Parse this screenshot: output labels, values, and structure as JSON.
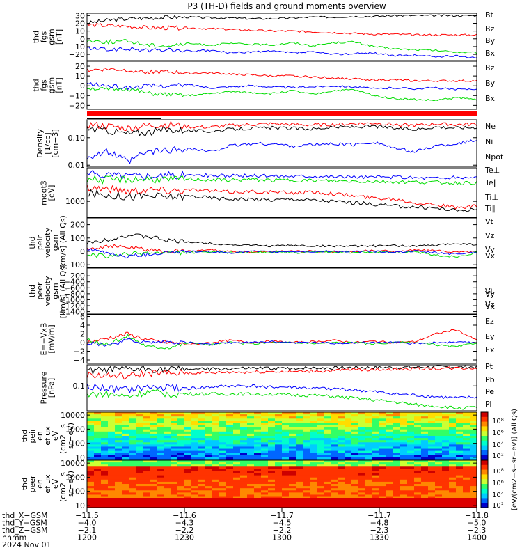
{
  "chart_data": {
    "title": "P3 (TH-D) fields and ground moments overview",
    "panels": [
      {
        "ylabel": [
          "thd",
          "fgs",
          "gsm",
          "[nT]"
        ],
        "ylim": [
          -28,
          33
        ],
        "yticks": [
          "30",
          "20",
          "10",
          "0",
          "−10",
          "−20"
        ],
        "ytick_values": [
          30,
          20,
          10,
          0,
          -10,
          -20
        ],
        "series": [
          {
            "name": "Bt",
            "color": "#000000",
            "values": [
              20,
              24,
              26,
              27,
              28,
              28,
              27,
              27,
              26,
              26,
              27,
              28,
              28,
              29,
              29,
              30,
              30,
              30,
              30,
              30
            ]
          },
          {
            "name": "Bz",
            "color": "#ff0000",
            "values": [
              18,
              17,
              16,
              14,
              14,
              14,
              13,
              12,
              11,
              10,
              10,
              9,
              8,
              7,
              6,
              6,
              5,
              5,
              5,
              5
            ]
          },
          {
            "name": "By",
            "color": "#00dd00",
            "values": [
              -2,
              -4,
              -3,
              -8,
              -9,
              -6,
              -8,
              -6,
              -7,
              -8,
              -5,
              -9,
              -5,
              -4,
              -10,
              -13,
              -14,
              -15,
              -17,
              -18
            ]
          },
          {
            "name": "Bx",
            "color": "#0000ff",
            "values": [
              -12,
              -14,
              -13,
              -15,
              -14,
              -16,
              -15,
              -18,
              -17,
              -16,
              -18,
              -17,
              -20,
              -19,
              -18,
              -22,
              -21,
              -23,
              -22,
              -24
            ]
          }
        ]
      },
      {
        "ylabel": [
          "thd",
          "fgs",
          "gsm",
          "[nT]"
        ],
        "ylim": [
          -24,
          25
        ],
        "yticks": [
          "20",
          "10",
          "0",
          "−10",
          "−20"
        ],
        "ytick_values": [
          20,
          10,
          0,
          -10,
          -20
        ],
        "series": [
          {
            "name": "Bz",
            "color": "#ff0000",
            "values": [
              16,
              17,
              16,
              14,
              14,
              13,
              13,
              12,
              11,
              10,
              10,
              9,
              8,
              7,
              6,
              6,
              5,
              5,
              5,
              5
            ]
          },
          {
            "name": "By",
            "color": "#00dd00",
            "values": [
              -2,
              -4,
              -3,
              -8,
              -9,
              -10,
              -8,
              -6,
              -7,
              -8,
              -5,
              -9,
              -5,
              -4,
              -10,
              -13,
              -14,
              -15,
              -12,
              -14
            ]
          },
          {
            "name": "Bx",
            "color": "#0000ff",
            "values": [
              2,
              0,
              -2,
              0,
              0,
              1,
              -2,
              -1,
              0,
              -1,
              -2,
              -1,
              0,
              -1,
              -3,
              -2,
              -3,
              -2,
              -4,
              -3
            ]
          }
        ]
      },
      {
        "ylabel": [
          "Density",
          "[1/cc]",
          "[cm−3]"
        ],
        "log": true,
        "ylim": [
          0.0085,
          0.45
        ],
        "yticks": [
          "0.10",
          "0.01"
        ],
        "ytick_values": [
          0.1,
          0.01
        ],
        "series": [
          {
            "name": "Ne",
            "color": "#ff0000",
            "values": [
              0.3,
              0.26,
              0.22,
              0.28,
              0.3,
              0.25,
              0.24,
              0.28,
              0.3,
              0.32,
              0.3,
              0.29,
              0.3,
              0.32,
              0.34,
              0.3,
              0.28,
              0.32,
              0.3,
              0.31
            ]
          },
          {
            "name": "Ni",
            "color": "#000000",
            "values": [
              0.22,
              0.18,
              0.14,
              0.16,
              0.2,
              0.18,
              0.17,
              0.2,
              0.22,
              0.23,
              0.22,
              0.21,
              0.24,
              0.25,
              0.26,
              0.22,
              0.2,
              0.25,
              0.23,
              0.24
            ]
          },
          {
            "name": "Npot",
            "color": "#0000ff",
            "values": [
              0.02,
              0.03,
              0.012,
              0.03,
              0.035,
              0.04,
              0.03,
              0.05,
              0.06,
              0.06,
              0.05,
              0.055,
              0.06,
              0.055,
              0.07,
              0.04,
              0.03,
              0.05,
              0.06,
              0.08
            ]
          }
        ]
      },
      {
        "ylabel": [
          "moqt3",
          "[eV]"
        ],
        "log": true,
        "ylim": [
          300,
          12000
        ],
        "yticks": [
          "1000"
        ],
        "ytick_values": [
          1000
        ],
        "series": [
          {
            "name": "Te⊥",
            "color": "#ff0000",
            "values": [
              3000,
              2600,
              2200,
              2500,
              2300,
              2400,
              2200,
              2000,
              2100,
              2000,
              1900,
              2000,
              1800,
              1500,
              1300,
              1200,
              900,
              800,
              600,
              700
            ]
          },
          {
            "name": "Te∥",
            "color": "#000000",
            "values": [
              1800,
              1600,
              1400,
              1500,
              1400,
              1500,
              1300,
              1200,
              1200,
              1100,
              1200,
              1100,
              1000,
              900,
              800,
              700,
              650,
              600,
              500,
              550
            ]
          },
          {
            "name": "Ti⊥",
            "color": "#0000ff",
            "values": [
              8000,
              7500,
              7000,
              7200,
              7000,
              7300,
              7100,
              6800,
              7000,
              6900,
              6800,
              6900,
              6500,
              6400,
              6200,
              6300,
              6000,
              5800,
              6000,
              6100
            ]
          },
          {
            "name": "Ti∥",
            "color": "#00dd00",
            "values": [
              5500,
              5000,
              5200,
              5400,
              5000,
              5300,
              5100,
              5000,
              5200,
              4900,
              5000,
              4800,
              4700,
              4600,
              4500,
              4400,
              4300,
              4200,
              4000,
              4100
            ]
          }
        ]
      },
      {
        "ylabel": [
          "thd",
          "peir",
          "velocity",
          "gsm",
          "[km/s] (All Qs)"
        ],
        "ylim": [
          -120,
          250
        ],
        "yticks": [
          "200",
          "100",
          "0",
          "−100"
        ],
        "ytick_values": [
          200,
          100,
          0,
          -100
        ],
        "series": [
          {
            "name": "Vt",
            "color": "#000000",
            "values": [
              60,
              90,
              120,
              110,
              80,
              70,
              60,
              50,
              45,
              40,
              45,
              40,
              40,
              38,
              40,
              42,
              40,
              45,
              60,
              50
            ]
          },
          {
            "name": "Vz",
            "color": "#ff0000",
            "values": [
              20,
              40,
              30,
              10,
              0,
              5,
              10,
              0,
              -5,
              0,
              5,
              0,
              -3,
              0,
              5,
              0,
              10,
              5,
              -5,
              0
            ]
          },
          {
            "name": "Vy",
            "color": "#00dd00",
            "values": [
              -20,
              -40,
              -20,
              -10,
              -15,
              -10,
              -5,
              -10,
              -5,
              -8,
              -10,
              -5,
              -6,
              -10,
              -5,
              -8,
              -5,
              -30,
              -40,
              -10
            ]
          },
          {
            "name": "Vx",
            "color": "#0000ff",
            "values": [
              10,
              -10,
              -40,
              -20,
              -5,
              0,
              -5,
              -10,
              0,
              -5,
              0,
              -3,
              0,
              -2,
              0,
              -5,
              0,
              -10,
              -20,
              -5
            ]
          }
        ]
      },
      {
        "ylabel": [
          "thd",
          "peer",
          "velocity",
          "gsm",
          "[km/s] (All Qs)"
        ],
        "ylim": [
          -1480,
          60
        ],
        "yticks": [
          "−200",
          "−400",
          "−600",
          "−800",
          "−1000",
          "−1200",
          "−1400"
        ],
        "ytick_values": [
          -200,
          -400,
          -600,
          -800,
          -1000,
          -1200,
          -1400
        ],
        "series": [
          {
            "name": "Vt",
            "color": "#000000",
            "values": []
          },
          {
            "name": "Vz",
            "color": "#ff0000",
            "values": []
          },
          {
            "name": "Vy",
            "color": "#00dd00",
            "values": []
          },
          {
            "name": "Vx",
            "color": "#0000ff",
            "values": []
          }
        ]
      },
      {
        "ylabel": [
          "E=−VxB",
          "[mV/m]"
        ],
        "ylim": [
          -4.8,
          6.4
        ],
        "yticks": [
          "6",
          "4",
          "2",
          "0",
          "−2",
          "−4"
        ],
        "ytick_values": [
          6,
          4,
          2,
          0,
          -2,
          -4
        ],
        "series": [
          {
            "name": "Ez",
            "color": "#ff0000",
            "values": [
              0,
              1,
              2,
              0.5,
              0,
              -0.5,
              0,
              0.5,
              0,
              0.3,
              0,
              0.2,
              0.5,
              0,
              0.3,
              0,
              0.2,
              2,
              3,
              0.5
            ]
          },
          {
            "name": "Ey",
            "color": "#00dd00",
            "values": [
              0.5,
              -0.5,
              1.5,
              -1,
              -1,
              0,
              -0.5,
              0,
              -0.3,
              0,
              0,
              -0.2,
              0,
              0,
              -0.3,
              0,
              0,
              -0.5,
              -1,
              0
            ]
          },
          {
            "name": "Ex",
            "color": "#0000ff",
            "values": [
              0,
              -0.5,
              0.5,
              0,
              0.2,
              0,
              -0.5,
              0,
              0,
              0.2,
              0,
              0,
              -0.2,
              0,
              0,
              0,
              -0.2,
              0,
              0,
              0
            ]
          }
        ]
      },
      {
        "ylabel": [
          "Pressure",
          "[nPa]"
        ],
        "log": true,
        "ylim": [
          0.012,
          0.6
        ],
        "yticks": [
          "0.1"
        ],
        "ytick_values": [
          0.1
        ],
        "series": [
          {
            "name": "Pt",
            "color": "#000000",
            "values": [
              0.35,
              0.38,
              0.4,
              0.42,
              0.4,
              0.42,
              0.41,
              0.43,
              0.44,
              0.44,
              0.45,
              0.46,
              0.46,
              0.48,
              0.48,
              0.48,
              0.49,
              0.5,
              0.5,
              0.5
            ]
          },
          {
            "name": "Pb",
            "color": "#ff0000",
            "values": [
              0.25,
              0.24,
              0.22,
              0.3,
              0.28,
              0.3,
              0.3,
              0.32,
              0.32,
              0.34,
              0.33,
              0.35,
              0.36,
              0.4,
              0.4,
              0.42,
              0.43,
              0.44,
              0.45,
              0.46
            ]
          },
          {
            "name": "Pe",
            "color": "#00dd00",
            "values": [
              0.05,
              0.05,
              0.04,
              0.06,
              0.05,
              0.05,
              0.05,
              0.05,
              0.05,
              0.05,
              0.045,
              0.045,
              0.04,
              0.035,
              0.03,
              0.025,
              0.02,
              0.018,
              0.015,
              0.016
            ]
          },
          {
            "name": "Pi",
            "color": "#0000ff",
            "values": [
              0.09,
              0.08,
              0.07,
              0.09,
              0.09,
              0.08,
              0.09,
              0.1,
              0.1,
              0.09,
              0.09,
              0.08,
              0.08,
              0.07,
              0.06,
              0.05,
              0.045,
              0.04,
              0.035,
              0.038
            ]
          }
        ]
      },
      {
        "type": "heatmap",
        "ylabel": [
          "thd",
          "peir",
          "en",
          "eflux",
          "eV",
          "(cm2−s−",
          "sr−eV)"
        ],
        "log": true,
        "ylim": [
          7,
          16000
        ],
        "yticks": [
          "10000",
          "1000",
          "100",
          "10"
        ],
        "ytick_values": [
          10000,
          1000,
          100,
          10
        ]
      },
      {
        "type": "heatmap",
        "ylabel": [
          "thd",
          "peer",
          "en",
          "eflux",
          "eV",
          "(cm2−s−",
          "sr−eV)"
        ],
        "log": true,
        "ylim": [
          7,
          16000
        ],
        "yticks": [
          "10000",
          "1000",
          "100",
          "10"
        ],
        "ytick_values": [
          10000,
          1000,
          100,
          10
        ]
      }
    ],
    "colorbar": {
      "label": "[eV/(cm2−s−sr−eV)] (All Qs)",
      "ticks": [
        "10⁸",
        "10⁶",
        "10⁴",
        "10²",
        "10⁸",
        "10⁶",
        "10⁴",
        "10²"
      ],
      "colors": [
        "#cc0000",
        "#ff3300",
        "#ff8800",
        "#ffdd00",
        "#ccff33",
        "#33ff66",
        "#00ffcc",
        "#00ccff",
        "#0066ff",
        "#0000cc"
      ]
    },
    "xaxis": {
      "row_labels": [
        "thd_X−GSM",
        "thd_Y−GSM",
        "thd_Z−GSM",
        "hhmm",
        "2024 Nov 01"
      ],
      "x_gsm": [
        "−11.5",
        "−11.6",
        "−11.7",
        "−11.7",
        "−11.8"
      ],
      "y_gsm": [
        "−4.0",
        "−4.3",
        "−4.5",
        "−4.8",
        "−5.0"
      ],
      "z_gsm": [
        "−2.1",
        "−2.2",
        "−2.2",
        "−2.3",
        "−2.3"
      ],
      "hhmm": [
        "1200",
        "1230",
        "1300",
        "1330",
        "1400"
      ]
    }
  }
}
